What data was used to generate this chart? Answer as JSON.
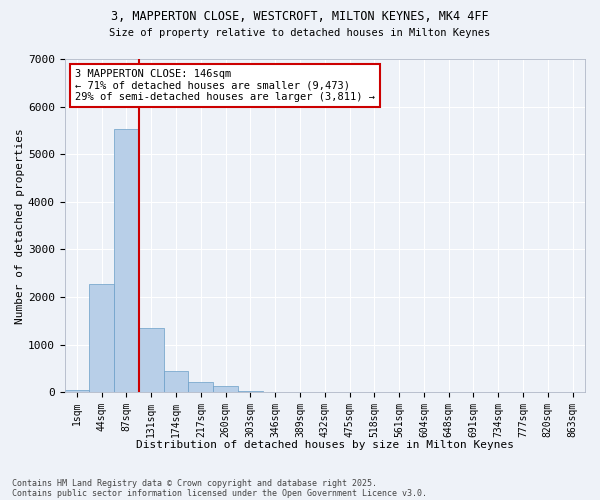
{
  "title_line1": "3, MAPPERTON CLOSE, WESTCROFT, MILTON KEYNES, MK4 4FF",
  "title_line2": "Size of property relative to detached houses in Milton Keynes",
  "xlabel": "Distribution of detached houses by size in Milton Keynes",
  "ylabel": "Number of detached properties",
  "categories": [
    "1sqm",
    "44sqm",
    "87sqm",
    "131sqm",
    "174sqm",
    "217sqm",
    "260sqm",
    "303sqm",
    "346sqm",
    "389sqm",
    "432sqm",
    "475sqm",
    "518sqm",
    "561sqm",
    "604sqm",
    "648sqm",
    "691sqm",
    "734sqm",
    "777sqm",
    "820sqm",
    "863sqm"
  ],
  "bar_values": [
    50,
    2280,
    5530,
    1360,
    450,
    220,
    130,
    30,
    10,
    5,
    0,
    0,
    0,
    0,
    0,
    0,
    0,
    0,
    0,
    0,
    0
  ],
  "bar_color": "#b8cfe8",
  "bar_edge_color": "#6a9ec8",
  "background_color": "#eef2f8",
  "grid_color": "#ffffff",
  "vline_color": "#cc0000",
  "ylim": [
    0,
    7000
  ],
  "yticks": [
    0,
    1000,
    2000,
    3000,
    4000,
    5000,
    6000,
    7000
  ],
  "annotation_text": "3 MAPPERTON CLOSE: 146sqm\n← 71% of detached houses are smaller (9,473)\n29% of semi-detached houses are larger (3,811) →",
  "annotation_box_color": "#ffffff",
  "annotation_box_edge_color": "#cc0000",
  "footer_line1": "Contains HM Land Registry data © Crown copyright and database right 2025.",
  "footer_line2": "Contains public sector information licensed under the Open Government Licence v3.0."
}
